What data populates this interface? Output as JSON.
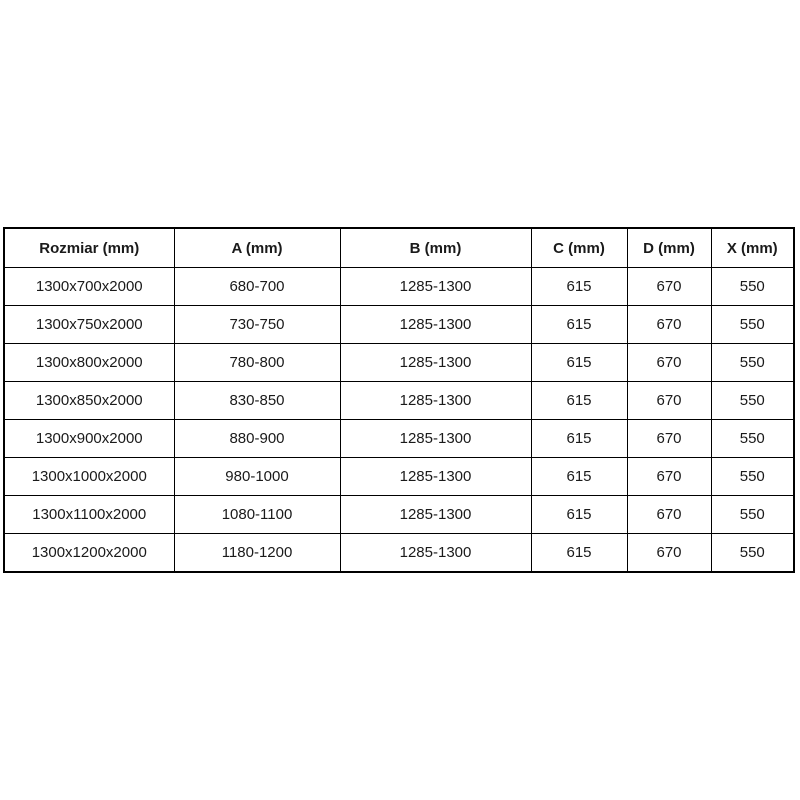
{
  "table": {
    "columns": [
      {
        "label": "Rozmiar (mm)"
      },
      {
        "label": "A (mm)"
      },
      {
        "label": "B (mm)"
      },
      {
        "label": "C (mm)"
      },
      {
        "label": "D (mm)"
      },
      {
        "label": "X (mm)"
      }
    ],
    "rows": [
      [
        "1300x700x2000",
        "680-700",
        "1285-1300",
        "615",
        "670",
        "550"
      ],
      [
        "1300x750x2000",
        "730-750",
        "1285-1300",
        "615",
        "670",
        "550"
      ],
      [
        "1300x800x2000",
        "780-800",
        "1285-1300",
        "615",
        "670",
        "550"
      ],
      [
        "1300x850x2000",
        "830-850",
        "1285-1300",
        "615",
        "670",
        "550"
      ],
      [
        "1300x900x2000",
        "880-900",
        "1285-1300",
        "615",
        "670",
        "550"
      ],
      [
        "1300x1000x2000",
        "980-1000",
        "1285-1300",
        "615",
        "670",
        "550"
      ],
      [
        "1300x1100x2000",
        "1080-1100",
        "1285-1300",
        "615",
        "670",
        "550"
      ],
      [
        "1300x1200x2000",
        "1180-1200",
        "1285-1300",
        "615",
        "670",
        "550"
      ]
    ],
    "colors": {
      "border": "#000000",
      "background": "#ffffff",
      "text": "#1a1a1a"
    }
  }
}
